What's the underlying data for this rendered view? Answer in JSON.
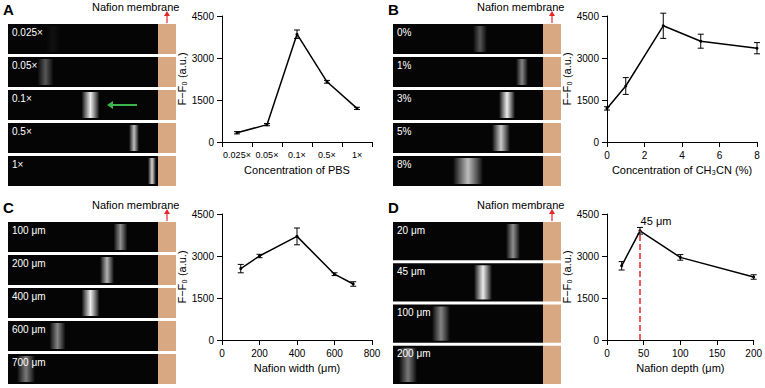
{
  "chart_data": [
    {
      "panel": "A",
      "type": "line",
      "image_header": "Nafion membrane",
      "image_labels": [
        "0.025×",
        "0.05×",
        "0.1×",
        "0.5×",
        "1×"
      ],
      "x_label": "Concentration of PBS",
      "y_label": "F−F₀ (a.u.)",
      "categories": [
        "0.025×",
        "0.05×",
        "0.1×",
        "0.5×",
        "1×"
      ],
      "values": [
        330,
        620,
        3850,
        2150,
        1200
      ],
      "errors": [
        40,
        40,
        150,
        50,
        40
      ],
      "ylim": [
        0,
        4500
      ],
      "yticks": [
        0,
        1500,
        3000,
        4500
      ],
      "color": "#000000",
      "marker": "circle",
      "grid": false
    },
    {
      "panel": "B",
      "type": "line",
      "image_header": "Nafion membrane",
      "image_labels": [
        "0%",
        "1%",
        "3%",
        "5%",
        "8%"
      ],
      "x_label": "Concentration of CH₃CN (%)",
      "y_label": "F−F₀ (a.u.)",
      "x": [
        0,
        1,
        3,
        5,
        8
      ],
      "values": [
        1200,
        2000,
        4150,
        3600,
        3350
      ],
      "errors": [
        60,
        300,
        450,
        250,
        200
      ],
      "xlim": [
        0,
        8
      ],
      "xticks": [
        0,
        2,
        4,
        6,
        8
      ],
      "ylim": [
        0,
        4500
      ],
      "yticks": [
        0,
        1500,
        3000,
        4500
      ],
      "color": "#000000",
      "marker": "circle",
      "grid": false
    },
    {
      "panel": "C",
      "type": "line",
      "image_header": "Nafion membrane",
      "image_labels": [
        "100 μm",
        "200 μm",
        "400 μm",
        "600 μm",
        "700 μm"
      ],
      "x_label": "Nafion width (μm)",
      "y_label": "F−F₀ (a.u.)",
      "x": [
        100,
        200,
        400,
        600,
        700
      ],
      "values": [
        2550,
        3000,
        3700,
        2350,
        2000
      ],
      "errors": [
        150,
        60,
        300,
        50,
        80
      ],
      "xlim": [
        0,
        800
      ],
      "xticks": [
        0,
        200,
        400,
        600,
        800
      ],
      "ylim": [
        0,
        4500
      ],
      "yticks": [
        0,
        1500,
        3000,
        4500
      ],
      "color": "#000000",
      "marker": "circle",
      "grid": false
    },
    {
      "panel": "D",
      "type": "line",
      "image_header": "Nafion membrane",
      "image_labels": [
        "20 μm",
        "45 μm",
        "100 μm",
        "200 μm"
      ],
      "x_label": "Nafion depth (μm)",
      "y_label": "F−F₀ (a.u.)",
      "x": [
        20,
        45,
        100,
        200
      ],
      "values": [
        2650,
        3900,
        2950,
        2250
      ],
      "errors": [
        150,
        120,
        100,
        80
      ],
      "xlim": [
        0,
        200
      ],
      "xticks": [
        0,
        50,
        100,
        150,
        200
      ],
      "ylim": [
        0,
        4500
      ],
      "yticks": [
        0,
        1500,
        3000,
        4500
      ],
      "annotation": {
        "text": "45 μm",
        "x": 45,
        "color": "#e8262a"
      },
      "color": "#000000",
      "marker": "circle",
      "grid": false
    }
  ]
}
